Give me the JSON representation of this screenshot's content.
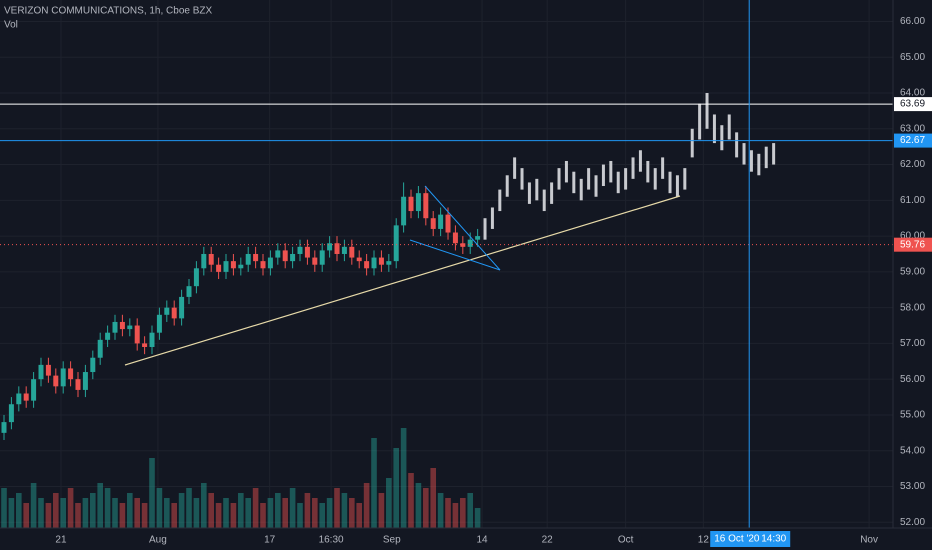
{
  "chart_data": {
    "type": "candlestick",
    "title": "VERIZON COMMUNICATIONS, 1h, Cboe BZX",
    "indicator": "Vol",
    "ylim": [
      51.84,
      66.6
    ],
    "yticks": [
      {
        "value": 52,
        "label": "52.00"
      },
      {
        "value": 53,
        "label": "53.00"
      },
      {
        "value": 54,
        "label": "54.00"
      },
      {
        "value": 55,
        "label": "55.00"
      },
      {
        "value": 56,
        "label": "56.00"
      },
      {
        "value": 57,
        "label": "57.00"
      },
      {
        "value": 58,
        "label": "58.00"
      },
      {
        "value": 59,
        "label": "59.00"
      },
      {
        "value": 60,
        "label": "60.00"
      },
      {
        "value": 61,
        "label": "61.00"
      },
      {
        "value": 62,
        "label": "62.00"
      },
      {
        "value": 63,
        "label": "63.00"
      },
      {
        "value": 64,
        "label": "64.00"
      },
      {
        "value": 65,
        "label": "65.00"
      },
      {
        "value": 66,
        "label": "66.00"
      }
    ],
    "xlim": [
      -0.54,
      120.13
    ],
    "xticks": [
      {
        "value": 7.7,
        "label": "21"
      },
      {
        "value": 20.8,
        "label": "Aug"
      },
      {
        "value": 35.9,
        "label": "17"
      },
      {
        "value": 44.2,
        "label": "16:30"
      },
      {
        "value": 52.4,
        "label": "Sep"
      },
      {
        "value": 64.6,
        "label": "14"
      },
      {
        "value": 73.4,
        "label": "22"
      },
      {
        "value": 84.0,
        "label": "Oct"
      },
      {
        "value": 94.5,
        "label": "12"
      },
      {
        "value": 116.9,
        "label": "Nov"
      }
    ],
    "grid": true,
    "up_color": "#26a69a",
    "down_color": "#ef5350",
    "ghost_color": "#c8cacf",
    "candles": {
      "open": [
        54.5,
        54.8,
        55.3,
        55.6,
        55.4,
        56.0,
        56.4,
        56.1,
        55.8,
        56.3,
        56.0,
        55.7,
        56.2,
        56.6,
        57.1,
        57.3,
        57.6,
        57.4,
        57.5,
        57.0,
        56.9,
        57.3,
        57.8,
        58.0,
        57.7,
        58.3,
        58.6,
        59.1,
        59.5,
        59.2,
        59.0,
        59.3,
        59.1,
        59.2,
        59.5,
        59.3,
        59.1,
        59.4,
        59.6,
        59.3,
        59.5,
        59.7,
        59.4,
        59.2,
        59.6,
        59.8,
        59.5,
        59.7,
        59.4,
        59.3,
        59.1,
        59.4,
        59.2,
        59.3,
        60.3,
        61.1,
        60.7,
        61.2,
        60.5,
        60.2,
        60.6,
        60.1,
        59.8,
        59.7,
        59.9
      ],
      "high": [
        55.0,
        55.5,
        55.8,
        55.8,
        56.2,
        56.6,
        56.6,
        56.3,
        56.5,
        56.5,
        56.2,
        56.4,
        56.8,
        57.3,
        57.5,
        57.8,
        57.8,
        57.7,
        57.7,
        57.2,
        57.5,
        58.0,
        58.2,
        58.2,
        58.5,
        58.8,
        59.3,
        59.7,
        59.7,
        59.4,
        59.5,
        59.5,
        59.4,
        59.7,
        59.7,
        59.5,
        59.6,
        59.8,
        59.8,
        59.7,
        59.9,
        59.9,
        59.6,
        59.8,
        60.0,
        60.0,
        59.9,
        59.9,
        59.6,
        59.5,
        59.6,
        59.6,
        59.5,
        60.5,
        61.5,
        61.3,
        61.4,
        61.4,
        60.7,
        60.8,
        60.8,
        60.3,
        60.0,
        60.1,
        60.2
      ],
      "low": [
        54.3,
        54.6,
        55.1,
        55.2,
        55.2,
        55.8,
        55.9,
        55.6,
        55.6,
        55.8,
        55.5,
        55.5,
        56.0,
        56.4,
        56.9,
        57.1,
        57.2,
        57.2,
        56.8,
        56.7,
        56.7,
        57.1,
        57.6,
        57.5,
        57.5,
        58.1,
        58.4,
        58.9,
        59.0,
        58.8,
        58.8,
        58.9,
        58.9,
        59.0,
        59.1,
        58.9,
        58.9,
        59.2,
        59.1,
        59.1,
        59.3,
        59.2,
        59.0,
        59.0,
        59.4,
        59.3,
        59.3,
        59.2,
        59.1,
        58.9,
        58.9,
        59.0,
        59.0,
        59.1,
        60.1,
        60.5,
        60.5,
        60.3,
        60.0,
        60.0,
        59.9,
        59.6,
        59.5,
        59.5,
        59.7
      ],
      "close": [
        54.8,
        55.3,
        55.6,
        55.4,
        56.0,
        56.4,
        56.1,
        55.8,
        56.3,
        56.0,
        55.7,
        56.2,
        56.6,
        57.1,
        57.3,
        57.6,
        57.4,
        57.5,
        57.0,
        56.9,
        57.3,
        57.8,
        58.0,
        57.7,
        58.3,
        58.6,
        59.1,
        59.5,
        59.2,
        59.0,
        59.3,
        59.1,
        59.2,
        59.5,
        59.3,
        59.1,
        59.4,
        59.6,
        59.3,
        59.5,
        59.7,
        59.4,
        59.2,
        59.6,
        59.8,
        59.5,
        59.7,
        59.4,
        59.3,
        59.1,
        59.4,
        59.2,
        59.3,
        60.3,
        61.1,
        60.7,
        61.2,
        60.5,
        60.2,
        60.6,
        60.1,
        59.8,
        59.7,
        59.9,
        60.0
      ]
    },
    "ghost": {
      "high": [
        60.5,
        60.8,
        61.3,
        61.7,
        62.2,
        61.9,
        61.5,
        61.6,
        61.3,
        61.5,
        61.9,
        62.1,
        61.8,
        61.6,
        61.9,
        61.7,
        62.0,
        62.1,
        61.8,
        61.9,
        62.2,
        62.4,
        62.1,
        61.9,
        62.2,
        61.8,
        61.7,
        61.9,
        63.0,
        63.7,
        64.0,
        63.4,
        63.1,
        63.4,
        62.9,
        62.6,
        62.4,
        62.3,
        62.5,
        62.6
      ],
      "low": [
        59.9,
        60.2,
        60.7,
        61.1,
        61.6,
        61.3,
        60.9,
        61.0,
        60.7,
        60.9,
        61.3,
        61.5,
        61.2,
        61.0,
        61.3,
        61.1,
        61.4,
        61.5,
        61.2,
        61.3,
        61.6,
        61.8,
        61.5,
        61.3,
        61.6,
        61.2,
        61.1,
        61.3,
        62.2,
        62.7,
        63.0,
        62.6,
        62.4,
        62.7,
        62.2,
        62.0,
        61.8,
        61.7,
        61.9,
        62.0
      ]
    },
    "volume": [
      8,
      6,
      7,
      5,
      9,
      6,
      5,
      7,
      6,
      8,
      5,
      6,
      7,
      9,
      8,
      6,
      5,
      7,
      6,
      5,
      14,
      8,
      6,
      5,
      7,
      8,
      6,
      9,
      7,
      5,
      6,
      5,
      7,
      6,
      8,
      5,
      6,
      7,
      6,
      8,
      5,
      7,
      6,
      5,
      6,
      8,
      7,
      6,
      5,
      9,
      18,
      7,
      10,
      16,
      20,
      11,
      9,
      8,
      12,
      7,
      6,
      5,
      6,
      7,
      4
    ],
    "price_lines": [
      {
        "value": 63.69,
        "color": "#ffffff"
      },
      {
        "value": 62.67,
        "color": "#2196f3"
      },
      {
        "value": 59.76,
        "color": "#ef5350"
      }
    ],
    "crosshair": {
      "x": 100.7,
      "date": "16 Oct '20",
      "time": "14:30"
    }
  }
}
